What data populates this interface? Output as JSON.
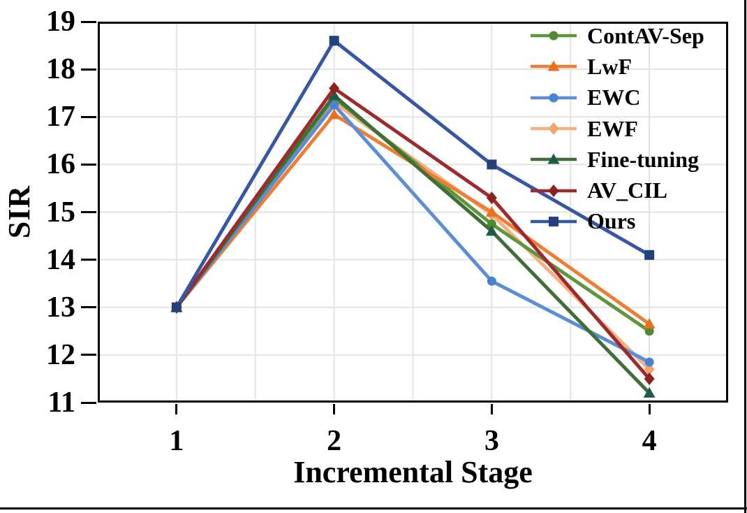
{
  "figure": {
    "background": "#ffffff",
    "outer_border_color": "#000000",
    "axes_spine_color": "#000000"
  },
  "chart_data": {
    "type": "line",
    "title": "",
    "xlabel": "Incremental Stage",
    "ylabel": "SIR",
    "x": [
      1,
      2,
      3,
      4
    ],
    "xticks": [
      1,
      2,
      3,
      4
    ],
    "yticks": [
      11,
      12,
      13,
      14,
      15,
      16,
      17,
      18,
      19
    ],
    "xlim": [
      0.5,
      4.5
    ],
    "ylim": [
      11,
      19
    ],
    "grid": "on",
    "grid_color": "#e3e3e3",
    "x_gridlines": [
      1,
      1.5,
      2,
      2.5,
      3,
      3.5,
      4
    ],
    "y_gridlines": [
      12,
      13,
      14,
      15,
      16,
      17,
      18
    ],
    "legend_position": "upper right",
    "series": [
      {
        "name": "ContAV-Sep",
        "marker": "circle",
        "color": "#5c973d",
        "marker_color": "#4e8a34",
        "values": [
          13.0,
          17.4,
          14.75,
          12.5
        ]
      },
      {
        "name": "LwF",
        "marker": "triangle",
        "color": "#ef7e32",
        "marker_color": "#e8721f",
        "values": [
          13.0,
          17.05,
          15.0,
          12.65
        ]
      },
      {
        "name": "EWC",
        "marker": "circle",
        "color": "#5b8ed6",
        "marker_color": "#4a82d0",
        "values": [
          13.0,
          17.25,
          13.55,
          11.85
        ]
      },
      {
        "name": "EWF",
        "marker": "diamond",
        "color": "#f5b183",
        "marker_color": "#f2a470",
        "values": [
          13.0,
          17.3,
          14.95,
          11.7
        ]
      },
      {
        "name": "Fine-tuning",
        "marker": "triangle",
        "color": "#3f6e37",
        "marker_color": "#1d5b4a",
        "values": [
          13.0,
          17.45,
          14.6,
          11.2
        ]
      },
      {
        "name": "AV_CIL",
        "marker": "diamond",
        "color": "#9e2a2b",
        "marker_color": "#8c2122",
        "values": [
          13.0,
          17.6,
          15.3,
          11.5
        ]
      },
      {
        "name": "Ours",
        "marker": "square",
        "color": "#3757a6",
        "marker_color": "#25417b",
        "values": [
          13.0,
          18.6,
          16.0,
          14.1
        ]
      }
    ],
    "draw_order": [
      "EWF",
      "ContAV-Sep",
      "LwF",
      "EWC",
      "Fine-tuning",
      "AV_CIL",
      "Ours"
    ]
  }
}
